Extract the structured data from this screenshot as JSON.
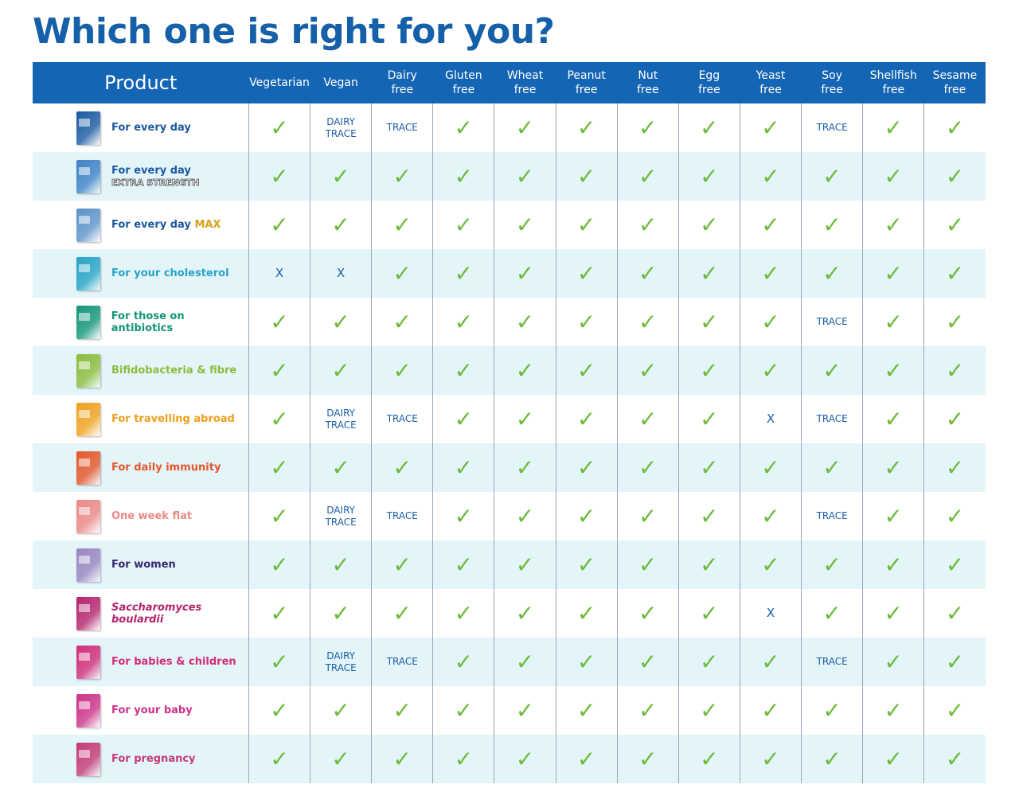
{
  "title": "Which one is right for you?",
  "header": {
    "product": "Product",
    "columns": [
      [
        "Vegetarian"
      ],
      [
        "Vegan"
      ],
      [
        "Dairy",
        "free"
      ],
      [
        "Gluten",
        "free"
      ],
      [
        "Wheat",
        "free"
      ],
      [
        "Peanut",
        "free"
      ],
      [
        "Nut",
        "free"
      ],
      [
        "Egg",
        "free"
      ],
      [
        "Yeast",
        "free"
      ],
      [
        "Soy",
        "free"
      ],
      [
        "Shellfish",
        "free"
      ],
      [
        "Sesame",
        "free"
      ]
    ]
  },
  "rows": [
    {
      "name": "For every day",
      "color": "#1a5aa0",
      "values": [
        "✓",
        "DAIRY TRACE",
        "TRACE",
        "✓",
        "✓",
        "✓",
        "✓",
        "✓",
        "✓",
        "TRACE",
        "✓",
        "✓"
      ]
    },
    {
      "name": "For every day",
      "suffix": "EXTRA STRENGTH",
      "suffix_style": "outline",
      "color": "#1a5aa0",
      "box": "#3f82c4",
      "values": [
        "✓",
        "✓",
        "✓",
        "✓",
        "✓",
        "✓",
        "✓",
        "✓",
        "✓",
        "✓",
        "✓",
        "✓"
      ]
    },
    {
      "name": "For every day",
      "suffix": "MAX",
      "suffix_color": "#d6a21a",
      "color": "#1a5aa0",
      "box": "#5a92c8",
      "values": [
        "✓",
        "✓",
        "✓",
        "✓",
        "✓",
        "✓",
        "✓",
        "✓",
        "✓",
        "✓",
        "✓",
        "✓"
      ]
    },
    {
      "name": "For your cholesterol",
      "color": "#27a4c6",
      "values": [
        "X",
        "X",
        "✓",
        "✓",
        "✓",
        "✓",
        "✓",
        "✓",
        "✓",
        "✓",
        "✓",
        "✓"
      ]
    },
    {
      "name": "For those on antibiotics",
      "color": "#139578",
      "values": [
        "✓",
        "✓",
        "✓",
        "✓",
        "✓",
        "✓",
        "✓",
        "✓",
        "✓",
        "TRACE",
        "✓",
        "✓"
      ]
    },
    {
      "name": "Bifidobacteria & fibre",
      "color": "#8cbd3c",
      "values": [
        "✓",
        "✓",
        "✓",
        "✓",
        "✓",
        "✓",
        "✓",
        "✓",
        "✓",
        "✓",
        "✓",
        "✓"
      ]
    },
    {
      "name": "For travelling abroad",
      "color": "#eda11e",
      "values": [
        "✓",
        "DAIRY TRACE",
        "TRACE",
        "✓",
        "✓",
        "✓",
        "✓",
        "✓",
        "X",
        "TRACE",
        "✓",
        "✓"
      ]
    },
    {
      "name": "For daily immunity",
      "color": "#e4572a",
      "values": [
        "✓",
        "✓",
        "✓",
        "✓",
        "✓",
        "✓",
        "✓",
        "✓",
        "✓",
        "✓",
        "✓",
        "✓"
      ]
    },
    {
      "name": "One week flat",
      "color": "#e88886",
      "values": [
        "✓",
        "DAIRY TRACE",
        "TRACE",
        "✓",
        "✓",
        "✓",
        "✓",
        "✓",
        "✓",
        "TRACE",
        "✓",
        "✓"
      ]
    },
    {
      "name": "For women",
      "color": "#34296e",
      "box": "#9b86c2",
      "values": [
        "✓",
        "✓",
        "✓",
        "✓",
        "✓",
        "✓",
        "✓",
        "✓",
        "✓",
        "✓",
        "✓",
        "✓"
      ]
    },
    {
      "name": "Saccharomyces boulardii",
      "italic": true,
      "color": "#b3246c",
      "values": [
        "✓",
        "✓",
        "✓",
        "✓",
        "✓",
        "✓",
        "✓",
        "✓",
        "X",
        "✓",
        "✓",
        "✓"
      ]
    },
    {
      "name": "For babies & children",
      "color": "#d22e7a",
      "values": [
        "✓",
        "DAIRY TRACE",
        "TRACE",
        "✓",
        "✓",
        "✓",
        "✓",
        "✓",
        "✓",
        "TRACE",
        "✓",
        "✓"
      ]
    },
    {
      "name": "For your baby",
      "color": "#cc3288",
      "values": [
        "✓",
        "✓",
        "✓",
        "✓",
        "✓",
        "✓",
        "✓",
        "✓",
        "✓",
        "✓",
        "✓",
        "✓"
      ]
    },
    {
      "name": "For pregnancy",
      "color": "#c63a78",
      "values": [
        "✓",
        "✓",
        "✓",
        "✓",
        "✓",
        "✓",
        "✓",
        "✓",
        "✓",
        "✓",
        "✓",
        "✓"
      ]
    }
  ]
}
